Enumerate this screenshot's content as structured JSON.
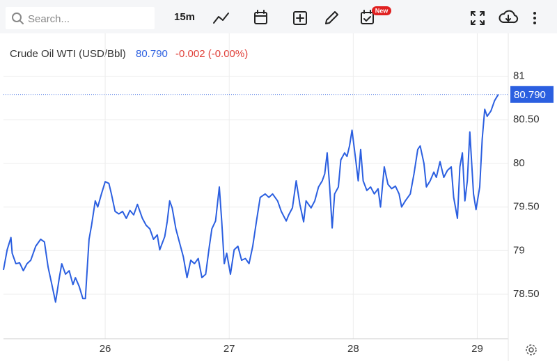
{
  "toolbar": {
    "search_placeholder": "Search...",
    "interval": "15m",
    "badge": "New"
  },
  "chart_data": {
    "type": "line",
    "title": "Crude Oil WTI (USD/Bbl)",
    "last_price": {
      "value": 80.79,
      "label": "80.790"
    },
    "change": "-0.002 (-0.00%)",
    "color": "#2b5fe0",
    "grid": true,
    "xlim": [
      25.18,
      29.25
    ],
    "xticks": [
      26,
      27,
      28,
      29
    ],
    "ylim": [
      77.99,
      81.49
    ],
    "yticks": [
      {
        "value": 78.5,
        "label": "78.50"
      },
      79,
      {
        "value": 79.5,
        "label": "79.50"
      },
      80,
      {
        "value": 80.5,
        "label": "80.50"
      },
      81
    ],
    "x": [
      25.18,
      25.21,
      25.24,
      25.25,
      25.28,
      25.31,
      25.34,
      25.37,
      25.4,
      25.44,
      25.48,
      25.51,
      25.54,
      25.57,
      25.6,
      25.63,
      25.65,
      25.68,
      25.71,
      25.74,
      25.76,
      25.79,
      25.82,
      25.84,
      25.87,
      25.89,
      25.92,
      25.94,
      25.97,
      26.0,
      26.03,
      26.05,
      26.08,
      26.11,
      26.14,
      26.17,
      26.2,
      26.23,
      26.26,
      26.3,
      26.33,
      26.36,
      26.39,
      26.42,
      26.44,
      26.48,
      26.5,
      26.52,
      26.54,
      26.57,
      26.6,
      26.63,
      26.66,
      26.69,
      26.72,
      26.75,
      26.78,
      26.81,
      26.84,
      26.86,
      26.89,
      26.92,
      26.94,
      26.96,
      26.98,
      27.01,
      27.04,
      27.07,
      27.1,
      27.13,
      27.16,
      27.19,
      27.22,
      27.25,
      27.29,
      27.32,
      27.35,
      27.39,
      27.42,
      27.46,
      27.48,
      27.51,
      27.54,
      27.57,
      27.6,
      27.62,
      27.66,
      27.69,
      27.72,
      27.75,
      27.77,
      27.79,
      27.81,
      27.83,
      27.85,
      27.88,
      27.9,
      27.93,
      27.95,
      27.97,
      27.99,
      28.02,
      28.04,
      28.06,
      28.08,
      28.11,
      28.14,
      28.17,
      28.2,
      28.22,
      28.25,
      28.28,
      28.31,
      28.34,
      28.37,
      28.39,
      28.42,
      28.46,
      28.49,
      28.52,
      28.54,
      28.57,
      28.59,
      28.62,
      28.65,
      28.67,
      28.7,
      28.73,
      28.76,
      28.79,
      28.81,
      28.84,
      28.86,
      28.88,
      28.9,
      28.92,
      28.94,
      28.97,
      28.99,
      29.02,
      29.04,
      29.06,
      29.08,
      29.11,
      29.14,
      29.17
    ],
    "values": [
      78.78,
      79.01,
      79.15,
      78.97,
      78.85,
      78.86,
      78.77,
      78.85,
      78.89,
      79.05,
      79.13,
      79.1,
      78.81,
      78.61,
      78.41,
      78.69,
      78.85,
      78.73,
      78.77,
      78.61,
      78.69,
      78.59,
      78.45,
      78.45,
      79.13,
      79.29,
      79.57,
      79.5,
      79.65,
      79.79,
      79.77,
      79.65,
      79.45,
      79.42,
      79.45,
      79.37,
      79.46,
      79.41,
      79.53,
      79.37,
      79.29,
      79.25,
      79.13,
      79.18,
      79.01,
      79.16,
      79.33,
      79.57,
      79.49,
      79.25,
      79.09,
      78.93,
      78.69,
      78.89,
      78.85,
      78.91,
      78.69,
      78.73,
      79.05,
      79.25,
      79.34,
      79.73,
      79.33,
      78.85,
      78.97,
      78.73,
      79.01,
      79.05,
      78.89,
      78.91,
      78.85,
      79.05,
      79.34,
      79.61,
      79.65,
      79.61,
      79.65,
      79.57,
      79.45,
      79.34,
      79.41,
      79.49,
      79.8,
      79.53,
      79.33,
      79.57,
      79.49,
      79.57,
      79.73,
      79.8,
      79.88,
      80.12,
      79.73,
      79.26,
      79.65,
      79.73,
      80.04,
      80.12,
      80.08,
      80.2,
      80.38,
      80.04,
      79.8,
      80.16,
      79.8,
      79.69,
      79.73,
      79.65,
      79.71,
      79.5,
      79.96,
      79.76,
      79.71,
      79.74,
      79.65,
      79.5,
      79.57,
      79.65,
      79.88,
      80.16,
      80.2,
      80.0,
      79.73,
      79.8,
      79.9,
      79.84,
      80.02,
      79.84,
      79.92,
      79.96,
      79.61,
      79.37,
      79.96,
      80.12,
      79.57,
      79.8,
      80.36,
      79.65,
      79.47,
      79.73,
      80.28,
      80.62,
      80.54,
      80.6,
      80.72,
      80.79
    ]
  }
}
